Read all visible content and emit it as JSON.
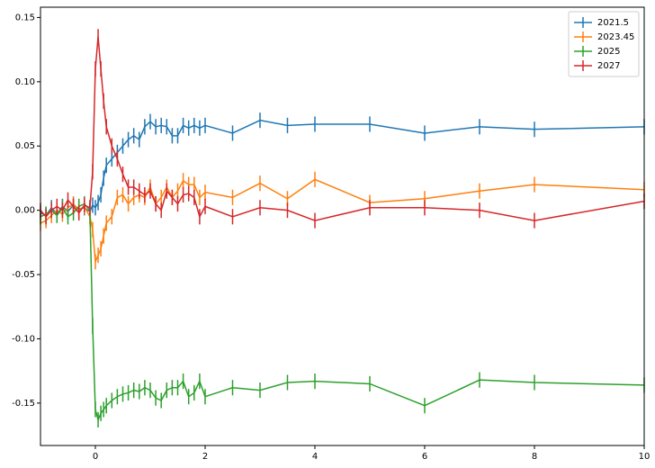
{
  "chart_data": {
    "type": "errorbar",
    "x": [
      -1,
      -0.9,
      -0.8,
      -0.7,
      -0.6,
      -0.5,
      -0.4,
      -0.3,
      -0.2,
      -0.1,
      -0.05,
      0,
      0.05,
      0.1,
      0.15,
      0.2,
      0.3,
      0.4,
      0.5,
      0.6,
      0.7,
      0.8,
      0.9,
      1.0,
      1.1,
      1.2,
      1.3,
      1.4,
      1.5,
      1.6,
      1.7,
      1.8,
      1.9,
      2.0,
      2.5,
      3,
      3.5,
      4,
      5,
      6,
      7,
      8,
      10
    ],
    "series": [
      {
        "name": "2021.5",
        "color": "#1f77b4",
        "error": 0.006,
        "values": [
          -0.002,
          -0.004,
          0.002,
          -0.003,
          0.003,
          -0.001,
          0.004,
          0.001,
          0.002,
          -0.001,
          0.004,
          0.002,
          0.006,
          0.012,
          0.025,
          0.035,
          0.04,
          0.045,
          0.05,
          0.055,
          0.058,
          0.055,
          0.065,
          0.069,
          0.065,
          0.066,
          0.065,
          0.058,
          0.058,
          0.066,
          0.064,
          0.066,
          0.064,
          0.066,
          0.06,
          0.07,
          0.066,
          0.067,
          0.067,
          0.06,
          0.065,
          0.063,
          0.065
        ]
      },
      {
        "name": "2023.45",
        "color": "#ff7f0e",
        "error": 0.006,
        "values": [
          -0.01,
          -0.008,
          -0.004,
          0.0,
          -0.003,
          0.002,
          0.005,
          0.0,
          0.003,
          -0.005,
          -0.015,
          -0.04,
          -0.035,
          -0.03,
          -0.02,
          -0.01,
          -0.005,
          0.01,
          0.012,
          0.005,
          0.01,
          0.012,
          0.01,
          0.018,
          0.005,
          0.01,
          0.018,
          0.01,
          0.015,
          0.023,
          0.02,
          0.02,
          0.01,
          0.014,
          0.01,
          0.021,
          0.009,
          0.024,
          0.006,
          0.009,
          0.015,
          0.02,
          0.016
        ]
      },
      {
        "name": "2025",
        "color": "#2ca02c",
        "error": 0.006,
        "values": [
          -0.005,
          -0.003,
          0.0,
          -0.004,
          0.002,
          -0.005,
          -0.002,
          0.003,
          0.005,
          0.0,
          -0.09,
          -0.155,
          -0.163,
          -0.158,
          -0.155,
          -0.152,
          -0.148,
          -0.145,
          -0.143,
          -0.142,
          -0.14,
          -0.141,
          -0.138,
          -0.14,
          -0.146,
          -0.148,
          -0.14,
          -0.138,
          -0.138,
          -0.133,
          -0.145,
          -0.142,
          -0.133,
          -0.145,
          -0.138,
          -0.14,
          -0.134,
          -0.133,
          -0.135,
          -0.152,
          -0.132,
          -0.134,
          -0.136
        ]
      },
      {
        "name": "2027",
        "color": "#d62728",
        "error": 0.006,
        "values": [
          0.0,
          -0.005,
          0.0,
          0.003,
          0.0,
          0.008,
          0.003,
          -0.002,
          0.004,
          0.002,
          0.03,
          0.11,
          0.135,
          0.11,
          0.085,
          0.065,
          0.05,
          0.04,
          0.028,
          0.018,
          0.018,
          0.015,
          0.012,
          0.015,
          0.005,
          0.0,
          0.015,
          0.01,
          0.005,
          0.012,
          0.013,
          0.01,
          -0.005,
          0.003,
          -0.005,
          0.002,
          0.0,
          -0.008,
          0.002,
          0.002,
          0.0,
          -0.008,
          0.007
        ]
      }
    ],
    "xlim": [
      -1,
      10
    ],
    "xticks": [
      0,
      2,
      4,
      6,
      8,
      10
    ],
    "ylim": [
      -0.183,
      0.158
    ],
    "yticks": [
      -0.15,
      {
        "value": -0.1,
        "label": "-0.10"
      },
      -0.05,
      {
        "value": 0,
        "label": "0.00"
      },
      0.05,
      {
        "value": 0.1,
        "label": "0.10"
      },
      0.15
    ],
    "legend": "upper right"
  }
}
